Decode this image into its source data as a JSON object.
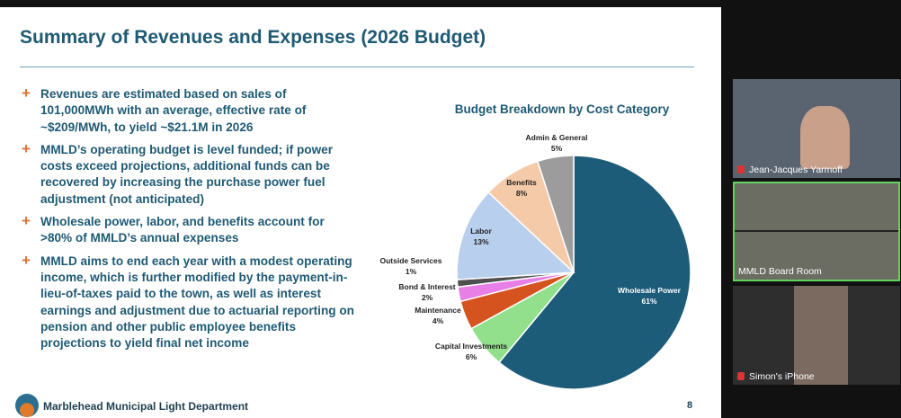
{
  "slide": {
    "title": "Summary of Revenues and Expenses (2026 Budget)",
    "bullets": [
      "Revenues are estimated based on sales of 101,000MWh with an average, effective rate of ~$209/MWh, to yield ~$21.1M in 2026",
      "MMLD’s operating budget is level funded; if power costs exceed projections, additional funds can be recovered by increasing the purchase power fuel adjustment (not anticipated)",
      "Wholesale power, labor, and benefits account for >80% of MMLD’s annual expenses",
      "MMLD aims to end each year with a modest operating income, which is further modified by the payment-in-lieu-of-taxes paid to the town, as well as interest earnings and adjustment due to actuarial reporting on pension and other public employee benefits projections to yield final net income"
    ],
    "footer": "Marblehead Municipal Light Department",
    "page_number": 8
  },
  "chart_data": {
    "type": "pie",
    "title": "Budget Breakdown by Cost Category",
    "categories": [
      "Wholesale Power",
      "Capital Investments",
      "Maintenance",
      "Bond & Interest",
      "Outside Services",
      "Labor",
      "Benefits",
      "Admin & General"
    ],
    "values": [
      61,
      6,
      4,
      2,
      1,
      13,
      8,
      5
    ],
    "value_labels": [
      "61%",
      "6%",
      "4%",
      "2%",
      "1%",
      "13%",
      "8%",
      "5%"
    ],
    "colors": [
      "#1d5c78",
      "#93e08c",
      "#d4531f",
      "#e77fe6",
      "#4f4f4f",
      "#b9cfee",
      "#f5caa9",
      "#9c9c9c"
    ]
  },
  "participants": [
    {
      "name": "Jean-Jacques Yarmoff"
    },
    {
      "name": "MMLD Board Room"
    },
    {
      "name": "Simon's iPhone"
    }
  ]
}
